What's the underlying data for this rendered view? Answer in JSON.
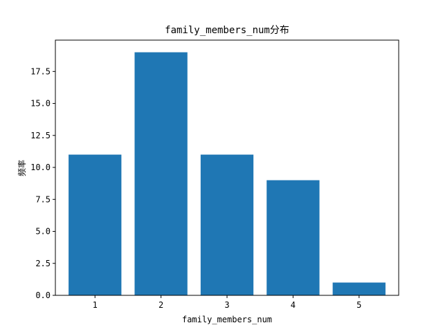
{
  "chart_data": {
    "type": "bar",
    "title": "family_members_num分布",
    "xlabel": "family_members_num",
    "ylabel": "频率",
    "categories": [
      "1",
      "2",
      "3",
      "4",
      "5"
    ],
    "values": [
      11,
      19,
      11,
      9,
      1
    ],
    "ylim": [
      0,
      19.95
    ],
    "yticks": [
      "0.0",
      "2.5",
      "5.0",
      "7.5",
      "10.0",
      "12.5",
      "15.0",
      "17.5"
    ],
    "grid": false,
    "legend": "none",
    "bar_color": "#1f77b4"
  }
}
